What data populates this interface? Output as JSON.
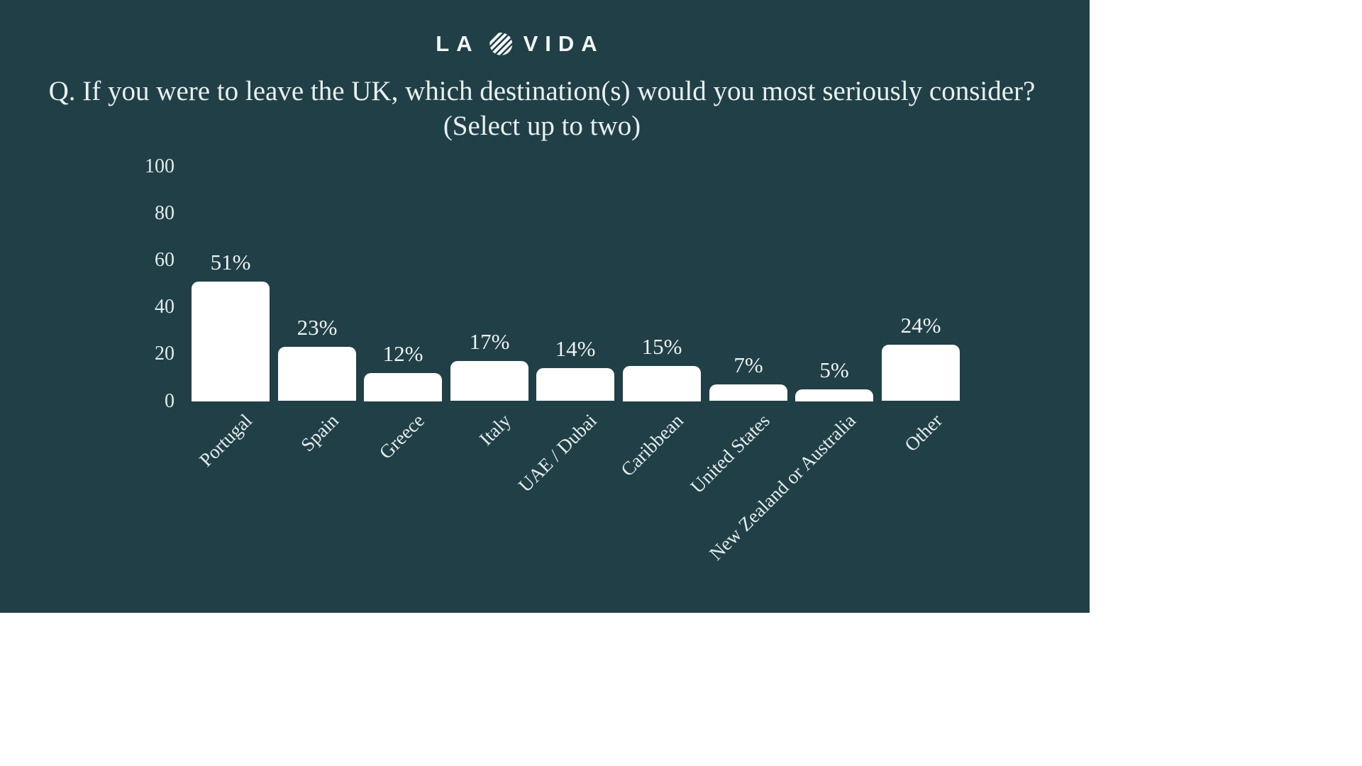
{
  "page": {
    "background": "#ffffff"
  },
  "panel": {
    "background": "#213f46"
  },
  "logo": {
    "part1": "LA",
    "part2": "VIDA",
    "icon": "striped-circle"
  },
  "title": {
    "line1": "Q. If you were to leave the UK, which destination(s) would you most seriously consider?",
    "line2": "(Select up to two)"
  },
  "chart_data": {
    "type": "bar",
    "title": "Q. If you were to leave the UK, which destination(s) would you most seriously consider? (Select up to two)",
    "categories": [
      "Portugal",
      "Spain",
      "Greece",
      "Italy",
      "UAE / Dubai",
      "Caribbean",
      "United States",
      "New Zealand or Australia",
      "Other"
    ],
    "values": [
      51,
      23,
      12,
      17,
      14,
      15,
      7,
      5,
      24
    ],
    "value_labels": [
      "51%",
      "23%",
      "12%",
      "17%",
      "14%",
      "15%",
      "7%",
      "5%",
      "24%"
    ],
    "yticks": [
      100,
      80,
      60,
      40,
      20,
      0
    ],
    "ylim": [
      0,
      100
    ],
    "xlabel": "",
    "ylabel": "",
    "grid": false,
    "legend": false,
    "bar_color": "#ffffff",
    "label_color": "#eef4f3",
    "tick_color": "#e3edec"
  }
}
